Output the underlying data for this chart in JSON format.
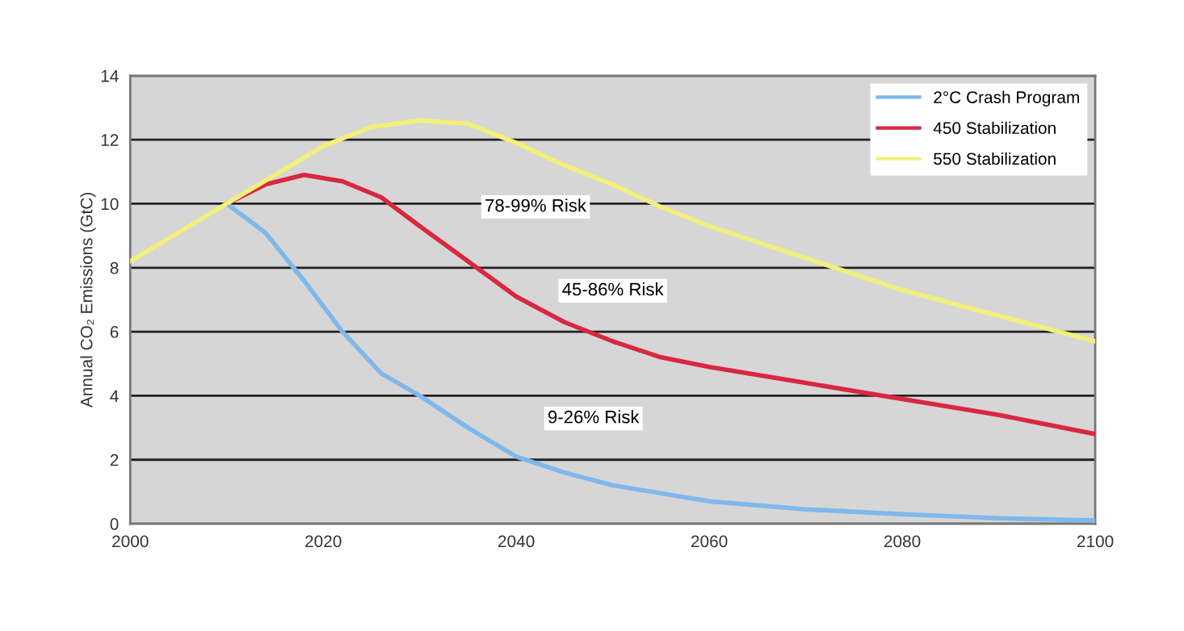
{
  "chart_data": {
    "type": "line",
    "ylabel": "Annual CO₂ Emissions (GtC)",
    "xlim": [
      2000,
      2100
    ],
    "xticks": [
      2000,
      2020,
      2040,
      2060,
      2080,
      2100
    ],
    "ylim": [
      0,
      14
    ],
    "yticks": [
      0,
      2,
      4,
      6,
      8,
      10,
      12,
      14
    ],
    "grid": "y",
    "legend": "top right",
    "marker": "none",
    "line_style": "solid",
    "series": [
      {
        "name": "2°C Crash Program",
        "color": "#7fb8ea",
        "x": [
          2010,
          2014,
          2018,
          2022,
          2026,
          2030,
          2035,
          2040,
          2045,
          2050,
          2060,
          2070,
          2080,
          2090,
          2100
        ],
        "values": [
          10.0,
          9.1,
          7.6,
          6.0,
          4.7,
          4.0,
          3.0,
          2.1,
          1.6,
          1.2,
          0.7,
          0.45,
          0.3,
          0.17,
          0.1
        ]
      },
      {
        "name": "450 Stabilization",
        "color": "#d8283f",
        "x": [
          2010,
          2014,
          2018,
          2022,
          2026,
          2030,
          2035,
          2040,
          2045,
          2050,
          2055,
          2060,
          2070,
          2080,
          2090,
          2100
        ],
        "values": [
          10.0,
          10.6,
          10.9,
          10.7,
          10.2,
          9.3,
          8.2,
          7.1,
          6.3,
          5.7,
          5.2,
          4.9,
          4.4,
          3.9,
          3.4,
          2.8
        ]
      },
      {
        "name": "550 Stabilization",
        "color": "#f2f07a",
        "x": [
          2000,
          2005,
          2010,
          2015,
          2020,
          2025,
          2030,
          2035,
          2040,
          2045,
          2050,
          2055,
          2060,
          2065,
          2070,
          2080,
          2090,
          2100
        ],
        "values": [
          8.2,
          9.1,
          10.0,
          10.9,
          11.8,
          12.4,
          12.6,
          12.5,
          11.9,
          11.2,
          10.6,
          9.9,
          9.3,
          8.8,
          8.3,
          7.3,
          6.5,
          5.7
        ]
      }
    ],
    "annotations": [
      "78-99% Risk",
      "45-86% Risk",
      "9-26% Risk"
    ]
  }
}
